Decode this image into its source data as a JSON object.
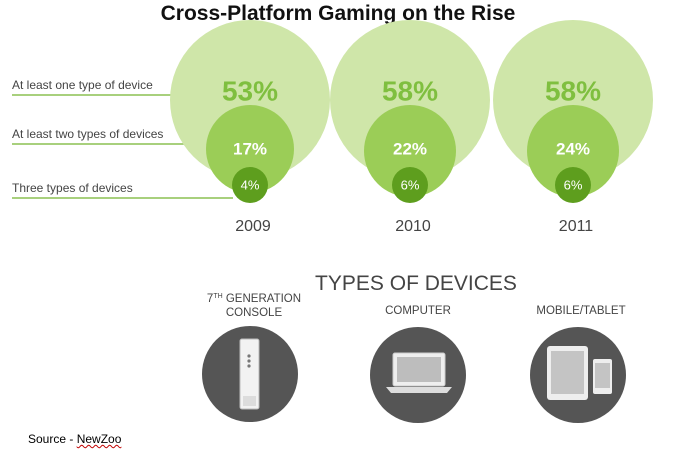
{
  "title": "Cross-Platform Gaming on the Rise",
  "chart_data": {
    "type": "bubble",
    "title": "Cross-Platform Gaming on the Rise",
    "categories": [
      "2009",
      "2010",
      "2011"
    ],
    "series": [
      {
        "name": "At least one type of device",
        "values": [
          53,
          58,
          58
        ],
        "labels": [
          "53%",
          "58%",
          "58%"
        ]
      },
      {
        "name": "At least two types of devices",
        "values": [
          17,
          22,
          24
        ],
        "labels": [
          "17%",
          "22%",
          "24%"
        ]
      },
      {
        "name": "Three types of devices",
        "values": [
          4,
          6,
          6
        ],
        "labels": [
          "4%",
          "6%",
          "6%"
        ]
      }
    ],
    "colors": [
      "#cfe6a9",
      "#9bcd57",
      "#5e9e1e"
    ]
  },
  "devices": {
    "heading": "TYPES OF DEVICES",
    "items": [
      {
        "label_sup": "TH",
        "label_line1": "7 GENERATION",
        "label_line2": "CONSOLE",
        "icon": "console-icon"
      },
      {
        "label_line1": "COMPUTER",
        "icon": "laptop-icon"
      },
      {
        "label_line1": "MOBILE/TABLET",
        "icon": "tablet-phone-icon"
      }
    ],
    "icon_bg": "#555555"
  },
  "source": {
    "prefix": "Source - ",
    "name": "NewZoo"
  }
}
